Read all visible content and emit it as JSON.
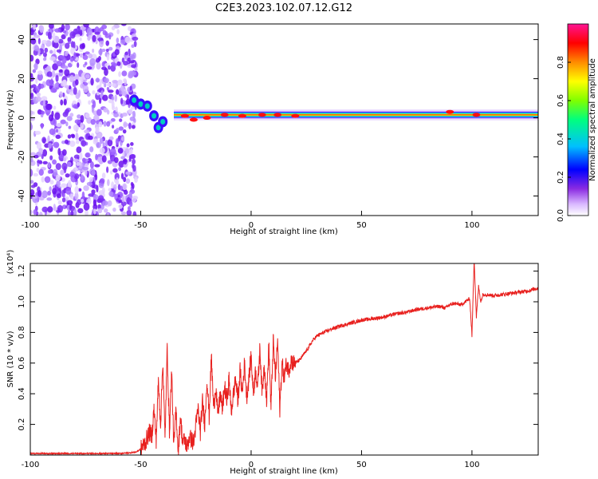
{
  "title": "C2E3.2023.102.07.12.G12",
  "chart_data": [
    {
      "type": "heatmap",
      "xlabel": "Height of straight line (km)",
      "ylabel": "Frequency (Hz)",
      "xlim": [
        -100,
        130
      ],
      "ylim": [
        -50,
        48
      ],
      "xticks": [
        -100,
        -50,
        0,
        50,
        100
      ],
      "yticks": [
        -40,
        -20,
        0,
        20,
        40
      ],
      "colorbar": {
        "label": "Normalized spectral amplitude",
        "range": [
          0,
          1
        ],
        "ticks": [
          0.0,
          0.2,
          0.4,
          0.6,
          0.8
        ],
        "colors": [
          "#ffffff",
          "#d9b8ff",
          "#8a2be2",
          "#0000ff",
          "#00bfff",
          "#00ff7f",
          "#7fff00",
          "#ffff00",
          "#ff8c00",
          "#ff0000",
          "#ff1493"
        ]
      },
      "features": [
        {
          "name": "noise-region",
          "x_range": [
            -100,
            -52
          ],
          "y_range": [
            -50,
            48
          ]
        },
        {
          "name": "transition-cluster",
          "points": [
            [
              -53,
              9
            ],
            [
              -50,
              7
            ],
            [
              -47,
              6
            ],
            [
              -44,
              1
            ],
            [
              -42,
              -5
            ],
            [
              -40,
              -2
            ]
          ]
        },
        {
          "name": "carrier-band",
          "y": 1.5,
          "x_range": [
            -35,
            130
          ]
        }
      ]
    },
    {
      "type": "line",
      "xlabel": "Height of straight line (km)",
      "ylabel": "SNR (10 * v/v)",
      "y_multiplier": "(x10⁴)",
      "xlim": [
        -100,
        130
      ],
      "ylim": [
        0,
        1.25
      ],
      "xticks": [
        -100,
        -50,
        0,
        50,
        100
      ],
      "yticks": [
        0.2,
        0.4,
        0.6,
        0.8,
        1.0,
        1.2
      ],
      "color": "#e8201e",
      "series": [
        {
          "x": [
            -100,
            -90,
            -80,
            -70,
            -60,
            -55,
            -52,
            -50,
            -48,
            -46,
            -45,
            -44,
            -43,
            -42,
            -41,
            -40,
            -39,
            -38,
            -37,
            -36,
            -35,
            -34,
            -33,
            -32,
            -31,
            -30,
            -29,
            -28,
            -27,
            -26,
            -25,
            -24,
            -23,
            -22,
            -21,
            -20,
            -19,
            -18,
            -17,
            -16,
            -15,
            -14,
            -13,
            -12,
            -11,
            -10,
            -9,
            -8,
            -7,
            -6,
            -5,
            -4,
            -3,
            -2,
            -1,
            0,
            1,
            2,
            3,
            4,
            5,
            6,
            7,
            8,
            9,
            10,
            11,
            12,
            13,
            14,
            15,
            16,
            17,
            18,
            19,
            20,
            22,
            24,
            26,
            28,
            30,
            33,
            36,
            40,
            45,
            50,
            55,
            60,
            65,
            70,
            75,
            80,
            85,
            88,
            90,
            92,
            95,
            97,
            99,
            100,
            101,
            102,
            103,
            104,
            105,
            110,
            115,
            120,
            125,
            130
          ],
          "values": [
            0.01,
            0.01,
            0.01,
            0.01,
            0.01,
            0.015,
            0.02,
            0.04,
            0.08,
            0.15,
            0.12,
            0.3,
            0.1,
            0.48,
            0.2,
            0.62,
            0.1,
            0.7,
            0.15,
            0.55,
            0.05,
            0.3,
            0.02,
            0.25,
            0.08,
            0.1,
            0.05,
            0.12,
            0.1,
            0.08,
            0.2,
            0.3,
            0.15,
            0.35,
            0.2,
            0.5,
            0.25,
            0.65,
            0.3,
            0.45,
            0.25,
            0.4,
            0.3,
            0.45,
            0.35,
            0.5,
            0.28,
            0.4,
            0.5,
            0.35,
            0.55,
            0.4,
            0.6,
            0.38,
            0.5,
            0.65,
            0.4,
            0.55,
            0.45,
            0.7,
            0.4,
            0.6,
            0.35,
            0.72,
            0.3,
            0.75,
            0.5,
            0.75,
            0.3,
            0.6,
            0.5,
            0.6,
            0.55,
            0.62,
            0.6,
            0.6,
            0.62,
            0.66,
            0.7,
            0.75,
            0.78,
            0.8,
            0.82,
            0.84,
            0.86,
            0.88,
            0.89,
            0.9,
            0.92,
            0.93,
            0.95,
            0.96,
            0.97,
            0.96,
            0.98,
            0.99,
            0.98,
            1.0,
            1.02,
            0.78,
            1.28,
            0.9,
            1.1,
            1.0,
            1.05,
            1.04,
            1.05,
            1.06,
            1.07,
            1.09
          ]
        }
      ]
    }
  ]
}
